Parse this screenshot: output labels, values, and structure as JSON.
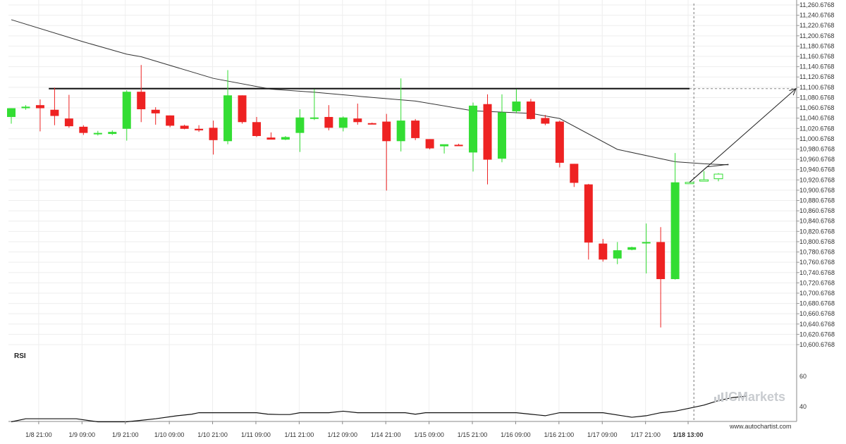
{
  "chart_data": {
    "type": "candlestick",
    "y_axis": {
      "range": [
        10580.6768,
        11270.6768
      ],
      "tick_labels": [
        "11,260.6768",
        "11,240.6768",
        "11,220.6768",
        "11,200.6768",
        "11,180.6768",
        "11,160.6768",
        "11,140.6768",
        "11,120.6768",
        "11,100.6768",
        "11,080.6768",
        "11,060.6768",
        "11,040.6768",
        "11,020.6768",
        "11,000.6768",
        "10,980.6768",
        "10,960.6768",
        "10,940.6768",
        "10,920.6768",
        "10,900.6768",
        "10,880.6768",
        "10,860.6768",
        "10,840.6768",
        "10,820.6768",
        "10,800.6768",
        "10,780.6768",
        "10,760.6768",
        "10,740.6768",
        "10,720.6768",
        "10,700.6768",
        "10,680.6768",
        "10,660.6768",
        "10,640.6768",
        "10,620.6768",
        "10,600.6768"
      ]
    },
    "x_axis": {
      "tick_labels": [
        "1/8 21:00",
        "1/9 09:00",
        "1/9 21:00",
        "1/10 09:00",
        "1/10 21:00",
        "1/11 09:00",
        "1/11 21:00",
        "1/12 09:00",
        "1/14 21:00",
        "1/15 09:00",
        "1/15 21:00",
        "1/16 09:00",
        "1/16 21:00",
        "1/17 09:00",
        "1/17 21:00",
        "1/18 13:00"
      ],
      "highlighted_label": "1/18 13:00"
    },
    "candles": [
      {
        "o": 11043,
        "h": 11060,
        "l": 11030,
        "c": 11060
      },
      {
        "o": 11060,
        "h": 11066,
        "l": 11057,
        "c": 11063
      },
      {
        "o": 11066,
        "h": 11077,
        "l": 11015,
        "c": 11060
      },
      {
        "o": 11057,
        "h": 11100,
        "l": 11027,
        "c": 11045
      },
      {
        "o": 11040,
        "h": 11086,
        "l": 11022,
        "c": 11025
      },
      {
        "o": 11024,
        "h": 11027,
        "l": 11008,
        "c": 11012
      },
      {
        "o": 11012,
        "h": 11016,
        "l": 11007,
        "c": 11012
      },
      {
        "o": 11010,
        "h": 11017,
        "l": 11008,
        "c": 11014
      },
      {
        "o": 11020,
        "h": 11095,
        "l": 10997,
        "c": 11092
      },
      {
        "o": 11092,
        "h": 11144,
        "l": 11033,
        "c": 11058
      },
      {
        "o": 11057,
        "h": 11062,
        "l": 11028,
        "c": 11050
      },
      {
        "o": 11046,
        "h": 11046,
        "l": 11023,
        "c": 11026
      },
      {
        "o": 11026,
        "h": 11028,
        "l": 11019,
        "c": 11020
      },
      {
        "o": 11020,
        "h": 11027,
        "l": 11014,
        "c": 11017
      },
      {
        "o": 11022,
        "h": 11036,
        "l": 10970,
        "c": 10998
      },
      {
        "o": 10996,
        "h": 11134,
        "l": 10990,
        "c": 11085
      },
      {
        "o": 11085,
        "h": 11085,
        "l": 11030,
        "c": 11033
      },
      {
        "o": 11033,
        "h": 11043,
        "l": 11004,
        "c": 11006
      },
      {
        "o": 11003,
        "h": 11013,
        "l": 11000,
        "c": 10999
      },
      {
        "o": 10999,
        "h": 11006,
        "l": 10998,
        "c": 11004
      },
      {
        "o": 11012,
        "h": 11058,
        "l": 10975,
        "c": 11042
      },
      {
        "o": 11042,
        "h": 11097,
        "l": 11037,
        "c": 11042
      },
      {
        "o": 11043,
        "h": 11066,
        "l": 11017,
        "c": 11022
      },
      {
        "o": 11022,
        "h": 11044,
        "l": 11015,
        "c": 11042
      },
      {
        "o": 11040,
        "h": 11069,
        "l": 11028,
        "c": 11033
      },
      {
        "o": 11031,
        "h": 11032,
        "l": 11029,
        "c": 11030
      },
      {
        "o": 11034,
        "h": 11049,
        "l": 10900,
        "c": 10996
      },
      {
        "o": 10996,
        "h": 11118,
        "l": 10976,
        "c": 11036
      },
      {
        "o": 11036,
        "h": 11039,
        "l": 10998,
        "c": 11002
      },
      {
        "o": 11000,
        "h": 11000,
        "l": 10980,
        "c": 10982
      },
      {
        "o": 10986,
        "h": 10988,
        "l": 10972,
        "c": 10990
      },
      {
        "o": 10989,
        "h": 10991,
        "l": 10988,
        "c": 10988
      },
      {
        "o": 10974,
        "h": 11071,
        "l": 10937,
        "c": 11065
      },
      {
        "o": 11068,
        "h": 11087,
        "l": 10912,
        "c": 10960
      },
      {
        "o": 10962,
        "h": 11087,
        "l": 10955,
        "c": 11052
      },
      {
        "o": 11054,
        "h": 11097,
        "l": 11050,
        "c": 11073
      },
      {
        "o": 11073,
        "h": 11078,
        "l": 11038,
        "c": 11039
      },
      {
        "o": 11041,
        "h": 11047,
        "l": 11027,
        "c": 11030
      },
      {
        "o": 11034,
        "h": 11036,
        "l": 10945,
        "c": 10954
      },
      {
        "o": 10952,
        "h": 10952,
        "l": 10907,
        "c": 10915
      },
      {
        "o": 10912,
        "h": 10913,
        "l": 10766,
        "c": 10799
      },
      {
        "o": 10797,
        "h": 10806,
        "l": 10762,
        "c": 10766
      },
      {
        "o": 10768,
        "h": 10800,
        "l": 10757,
        "c": 10784
      },
      {
        "o": 10785,
        "h": 10791,
        "l": 10784,
        "c": 10790
      },
      {
        "o": 10799,
        "h": 10836,
        "l": 10739,
        "c": 10800
      },
      {
        "o": 10800,
        "h": 10829,
        "l": 10634,
        "c": 10728
      },
      {
        "o": 10728,
        "h": 10973,
        "l": 10727,
        "c": 10916
      },
      {
        "o": 10916,
        "h": 10915,
        "l": 10915,
        "c": 10916
      },
      {
        "o": 10919,
        "h": 10938,
        "l": 10919,
        "c": 10921
      },
      {
        "o": 10923,
        "h": 10934,
        "l": 10918,
        "c": 10932
      }
    ],
    "moving_average": [
      {
        "i": 0,
        "v": 11232
      },
      {
        "i": 5,
        "v": 11189
      },
      {
        "i": 8,
        "v": 11165
      },
      {
        "i": 9,
        "v": 11160
      },
      {
        "i": 14,
        "v": 11118
      },
      {
        "i": 18,
        "v": 11097
      },
      {
        "i": 21,
        "v": 11091
      },
      {
        "i": 25,
        "v": 11081
      },
      {
        "i": 28,
        "v": 11074
      },
      {
        "i": 32,
        "v": 11055
      },
      {
        "i": 36,
        "v": 11050
      },
      {
        "i": 38,
        "v": 11040
      },
      {
        "i": 42,
        "v": 10980
      },
      {
        "i": 46,
        "v": 10956
      },
      {
        "i": 48,
        "v": 10952
      },
      {
        "i": 49.7,
        "v": 10950
      }
    ],
    "resistance_level": {
      "value": 11098,
      "from_index": 2.6,
      "to_index": 47
    },
    "projection": {
      "from_value": 10916,
      "to_value": 11098
    },
    "triangle": [
      {
        "i": 47,
        "v": 10916
      },
      {
        "i": 48.2,
        "v": 10946
      },
      {
        "i": 49.7,
        "v": 10951
      }
    ],
    "rsi": {
      "label": "RSI",
      "tick_labels": [
        "60",
        "40"
      ],
      "range": [
        30,
        70
      ],
      "values": [
        {
          "i": 0,
          "v": 30
        },
        {
          "i": 1,
          "v": 32
        },
        {
          "i": 4.5,
          "v": 32
        },
        {
          "i": 6,
          "v": 30
        },
        {
          "i": 8,
          "v": 30
        },
        {
          "i": 9,
          "v": 31
        },
        {
          "i": 10,
          "v": 32
        },
        {
          "i": 11.5,
          "v": 34
        },
        {
          "i": 12.5,
          "v": 35
        },
        {
          "i": 13,
          "v": 36
        },
        {
          "i": 14,
          "v": 36
        },
        {
          "i": 15,
          "v": 36
        },
        {
          "i": 17,
          "v": 36
        },
        {
          "i": 17.8,
          "v": 35
        },
        {
          "i": 18.6,
          "v": 34.8
        },
        {
          "i": 19.3,
          "v": 34.8
        },
        {
          "i": 20,
          "v": 36
        },
        {
          "i": 21,
          "v": 36
        },
        {
          "i": 22,
          "v": 36
        },
        {
          "i": 23,
          "v": 37
        },
        {
          "i": 24,
          "v": 36
        },
        {
          "i": 25.5,
          "v": 36
        },
        {
          "i": 26.5,
          "v": 36
        },
        {
          "i": 27.3,
          "v": 36
        },
        {
          "i": 28,
          "v": 35
        },
        {
          "i": 28.7,
          "v": 36
        },
        {
          "i": 30,
          "v": 36
        },
        {
          "i": 31,
          "v": 36
        },
        {
          "i": 32,
          "v": 36
        },
        {
          "i": 33,
          "v": 36
        },
        {
          "i": 34,
          "v": 36
        },
        {
          "i": 35,
          "v": 36
        },
        {
          "i": 36,
          "v": 35
        },
        {
          "i": 37,
          "v": 34
        },
        {
          "i": 38,
          "v": 36
        },
        {
          "i": 40,
          "v": 36
        },
        {
          "i": 41,
          "v": 36
        },
        {
          "i": 43,
          "v": 33
        },
        {
          "i": 44,
          "v": 34
        },
        {
          "i": 45,
          "v": 36
        },
        {
          "i": 46,
          "v": 37
        },
        {
          "i": 47,
          "v": 39
        },
        {
          "i": 48,
          "v": 41
        },
        {
          "i": 49,
          "v": 44
        },
        {
          "i": 50,
          "v": 46
        },
        {
          "i": 51,
          "v": 47
        }
      ]
    },
    "colors": {
      "bull": "#33dd33",
      "bear": "#ee2222",
      "ma": "#333333",
      "level": "#111111",
      "grid": "#eeeeee",
      "projection": "#222222"
    }
  },
  "branding": {
    "watermark": "ICMarkets",
    "source": "www.autochartist.com"
  }
}
